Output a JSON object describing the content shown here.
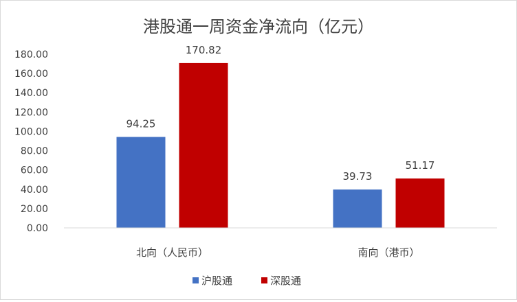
{
  "chart_data": {
    "type": "bar",
    "title": "港股通一周资金净流向（亿元）",
    "categories": [
      "北向（人民币）",
      "南向（港币）"
    ],
    "series": [
      {
        "name": "沪股通",
        "values": [
          94.25,
          39.73
        ],
        "labels": [
          "94.25",
          "39.73"
        ],
        "color": "#4472c4"
      },
      {
        "name": "深股通",
        "values": [
          170.82,
          51.17
        ],
        "labels": [
          "170.82",
          "51.17"
        ],
        "color": "#c00000"
      }
    ],
    "ylim": [
      0,
      180
    ],
    "yticks": [
      "0.00",
      "20.00",
      "40.00",
      "60.00",
      "80.00",
      "100.00",
      "120.00",
      "140.00",
      "160.00",
      "180.00"
    ],
    "xlabel": "",
    "ylabel": "",
    "grid": false,
    "legend_position": "bottom"
  }
}
